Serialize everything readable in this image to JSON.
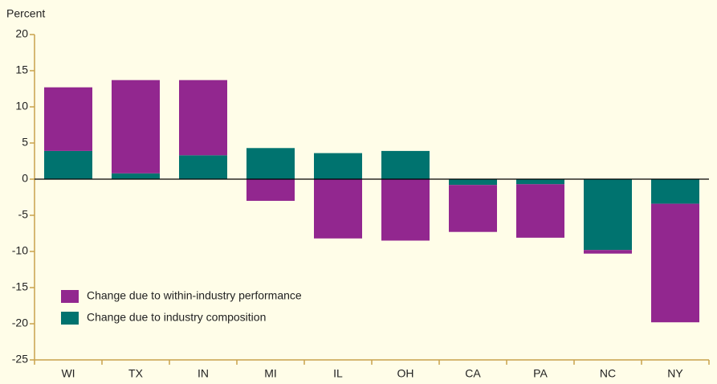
{
  "chart_data": {
    "type": "bar",
    "stacked": true,
    "y_label": "Percent",
    "categories": [
      "WI",
      "TX",
      "IN",
      "MI",
      "IL",
      "OH",
      "CA",
      "PA",
      "NC",
      "NY"
    ],
    "series": [
      {
        "name": "Change due to within-industry performance",
        "color": "#92278f",
        "values": [
          8.8,
          12.9,
          10.4,
          -3.0,
          -8.2,
          -8.5,
          -6.5,
          -7.4,
          -0.5,
          -16.4
        ]
      },
      {
        "name": "Change due to industry composition",
        "color": "#00736f",
        "values": [
          3.9,
          0.8,
          3.3,
          4.3,
          3.6,
          3.9,
          -0.8,
          -0.7,
          -9.8,
          -3.4
        ]
      }
    ],
    "ylim": [
      -25,
      20
    ],
    "yticks": [
      -25,
      -20,
      -15,
      -10,
      -5,
      0,
      5,
      10,
      15,
      20
    ],
    "legend": "lower left"
  }
}
